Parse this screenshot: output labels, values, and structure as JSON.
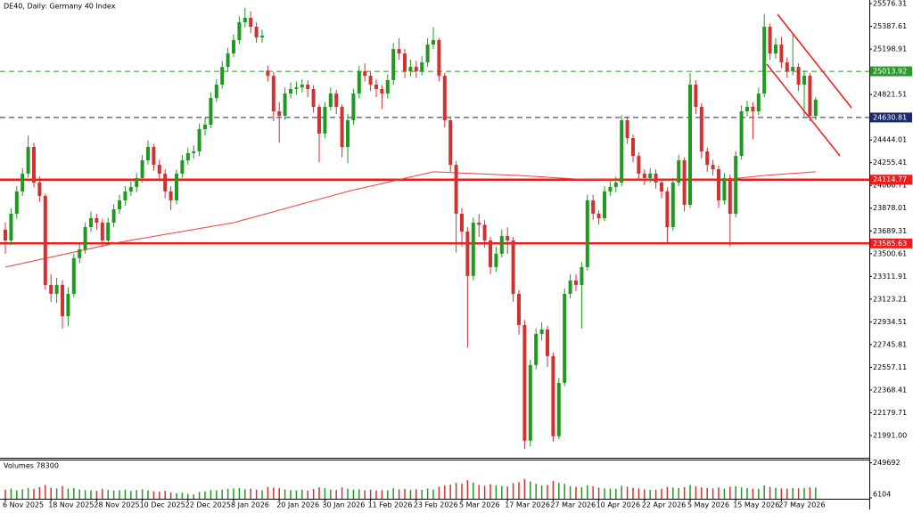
{
  "chart_data": {
    "type": "candlestick",
    "title": "DE40, Daily:  Germany 40 Index",
    "up_color": "#1f9a1f",
    "down_color": "#d23131",
    "categories": [
      "6 Nov 2025",
      null,
      null,
      null,
      null,
      null,
      null,
      null,
      "18 Nov 2025",
      null,
      null,
      null,
      null,
      null,
      null,
      null,
      "28 Nov 2025",
      null,
      null,
      null,
      null,
      null,
      null,
      null,
      "10 Dec 2025",
      null,
      null,
      null,
      null,
      null,
      null,
      null,
      "22 Dec 2025",
      null,
      null,
      null,
      null,
      null,
      null,
      null,
      "8 Jan 2026",
      null,
      null,
      null,
      null,
      null,
      null,
      null,
      "20 Jan 2026",
      null,
      null,
      null,
      null,
      null,
      null,
      null,
      "30 Jan 2026",
      null,
      null,
      null,
      null,
      null,
      null,
      null,
      "11 Feb 2026",
      null,
      null,
      null,
      null,
      null,
      null,
      null,
      "23 Feb 2026",
      null,
      null,
      null,
      null,
      null,
      null,
      null,
      "5 Mar 2026",
      null,
      null,
      null,
      null,
      null,
      null,
      null,
      "17 Mar 2026",
      null,
      null,
      null,
      null,
      null,
      null,
      null,
      "27 Mar 2026",
      null,
      null,
      null,
      null,
      null,
      null,
      null,
      "10 Apr 2026",
      null,
      null,
      null,
      null,
      null,
      null,
      null,
      "22 Apr 2026",
      null,
      null,
      null,
      null,
      null,
      null,
      null,
      "5 May 2026",
      null,
      null,
      null,
      null,
      null,
      null,
      null,
      "15 May 2026",
      null,
      null,
      null,
      null,
      null,
      null,
      null,
      "27 May 2026",
      null,
      null,
      null,
      null,
      null,
      null
    ],
    "open": [
      23700,
      23610,
      23832,
      24017,
      24165,
      24386,
      24091,
      23980,
      23241,
      23167,
      23241,
      22982,
      23167,
      23463,
      23536,
      23721,
      23795,
      23758,
      23610,
      23758,
      23869,
      23943,
      24017,
      24054,
      24128,
      24275,
      24386,
      24238,
      24165,
      24017,
      23943,
      24165,
      24275,
      24335,
      24349,
      24534,
      24571,
      24793,
      24904,
      25051,
      25162,
      25273,
      25421,
      25458,
      25384,
      25295,
      25020,
      24977,
      24682,
      24645,
      24830,
      24867,
      24880,
      24904,
      24867,
      24719,
      24497,
      24719,
      24830,
      24719,
      24386,
      24608,
      24830,
      25014,
      24977,
      24904,
      24867,
      24830,
      24941,
      25199,
      25162,
      25014,
      25051,
      25014,
      25088,
      25236,
      25273,
      24977,
      24608,
      24238,
      23832,
      23684,
      23315,
      23758,
      23740,
      23610,
      23389,
      23500,
      23647,
      23610,
      23167,
      22908,
      21948,
      22576,
      22834,
      22871,
      22650,
      21985,
      22428,
      23167,
      23278,
      23241,
      23389,
      23943,
      23832,
      23795,
      24017,
      24054,
      24091,
      24608,
      24460,
      24312,
      24165,
      24128,
      24165,
      24091,
      24017,
      23721,
      24091,
      24275,
      23906,
      24904,
      24719,
      24349,
      24238,
      24201,
      23943,
      24128,
      23832,
      24312,
      24682,
      24719,
      24682,
      24830,
      25384,
      25162,
      25236,
      25088,
      25014,
      25051,
      24904,
      24977,
      24645
    ],
    "high": [
      23760,
      23880,
      24060,
      24210,
      24480,
      24420,
      24140,
      24000,
      23330,
      23300,
      23280,
      23220,
      23500,
      23590,
      23760,
      23850,
      23830,
      23790,
      23800,
      23910,
      23990,
      24060,
      24100,
      24170,
      24320,
      24440,
      24410,
      24280,
      24200,
      24060,
      24200,
      24320,
      24380,
      24400,
      24580,
      24630,
      24840,
      24950,
      25100,
      25210,
      25320,
      25470,
      25540,
      25510,
      25420,
      25360,
      25060,
      25010,
      24760,
      24880,
      24920,
      24930,
      24950,
      24940,
      24900,
      24740,
      24760,
      24880,
      24860,
      24740,
      24660,
      24870,
      25060,
      25080,
      25010,
      24950,
      24900,
      24990,
      25250,
      25290,
      25200,
      25110,
      25100,
      25140,
      25290,
      25380,
      25290,
      25000,
      24640,
      24270,
      23880,
      23720,
      23800,
      23830,
      23780,
      23640,
      23560,
      23700,
      23720,
      23640,
      23200,
      22950,
      22620,
      22880,
      22930,
      22900,
      22680,
      22470,
      23210,
      23330,
      23330,
      23430,
      23990,
      23990,
      23860,
      24060,
      24100,
      24140,
      24650,
      24640,
      24490,
      24340,
      24200,
      24210,
      24200,
      24120,
      24050,
      24130,
      24320,
      24300,
      25000,
      24940,
      24750,
      24380,
      24280,
      24230,
      24170,
      24160,
      24350,
      24730,
      24770,
      24760,
      24880,
      25490,
      25410,
      25290,
      25300,
      25130,
      25330,
      25080,
      25020,
      25000,
      24800
    ],
    "low": [
      23500,
      23570,
      23790,
      23980,
      24130,
      24050,
      23930,
      23200,
      23100,
      23090,
      22880,
      22900,
      23140,
      23420,
      23500,
      23680,
      23700,
      23560,
      23580,
      23720,
      23830,
      23900,
      23980,
      24010,
      24090,
      24240,
      24190,
      24110,
      23960,
      23860,
      23910,
      24130,
      24240,
      24290,
      24310,
      24480,
      24540,
      24760,
      24870,
      25010,
      25130,
      25240,
      25380,
      25330,
      25250,
      25250,
      24930,
      24600,
      24420,
      24610,
      24790,
      24820,
      24840,
      24800,
      24670,
      24260,
      24460,
      24690,
      24660,
      24300,
      24250,
      24570,
      24790,
      24930,
      24850,
      24800,
      24700,
      24790,
      24900,
      25110,
      24960,
      24970,
      24960,
      24980,
      25050,
      25200,
      24930,
      24550,
      24180,
      23510,
      23560,
      22720,
      23280,
      23640,
      23550,
      23330,
      23350,
      23470,
      23500,
      23100,
      22830,
      21880,
      21900,
      22540,
      22780,
      22560,
      21940,
      21960,
      22400,
      23130,
      23190,
      22880,
      23360,
      23780,
      23740,
      23770,
      23980,
      24010,
      24060,
      24410,
      24260,
      24110,
      24070,
      24090,
      24040,
      23960,
      23590,
      23690,
      24060,
      23850,
      23880,
      24660,
      24290,
      24180,
      24150,
      23880,
      23910,
      23560,
      23800,
      24280,
      24640,
      24450,
      24650,
      24800,
      25110,
      25120,
      25040,
      24960,
      24980,
      24850,
      24640,
      24600,
      24610
    ],
    "close": [
      23610,
      23832,
      24017,
      24165,
      24386,
      24091,
      23980,
      23241,
      23167,
      23241,
      22982,
      23167,
      23463,
      23536,
      23721,
      23795,
      23758,
      23610,
      23758,
      23869,
      23943,
      24017,
      24054,
      24128,
      24275,
      24386,
      24238,
      24165,
      24017,
      23943,
      24165,
      24275,
      24335,
      24349,
      24534,
      24571,
      24793,
      24904,
      25051,
      25162,
      25273,
      25421,
      25458,
      25384,
      25295,
      25310,
      24977,
      24682,
      24645,
      24830,
      24867,
      24880,
      24904,
      24867,
      24719,
      24497,
      24719,
      24830,
      24719,
      24386,
      24608,
      24830,
      25014,
      24977,
      24904,
      24867,
      24830,
      24941,
      25199,
      25162,
      25014,
      25051,
      25014,
      25088,
      25236,
      25273,
      24977,
      24608,
      24238,
      23832,
      23684,
      23315,
      23758,
      23740,
      23610,
      23389,
      23500,
      23647,
      23610,
      23167,
      22908,
      21948,
      22576,
      22834,
      22871,
      22650,
      21985,
      22428,
      23167,
      23278,
      23241,
      23389,
      23943,
      23832,
      23795,
      24017,
      24054,
      24091,
      24608,
      24460,
      24312,
      24165,
      24128,
      24165,
      24091,
      24017,
      23721,
      24091,
      24275,
      23906,
      24904,
      24719,
      24349,
      24238,
      24201,
      23943,
      24128,
      23832,
      24312,
      24682,
      24719,
      24682,
      24830,
      25384,
      25162,
      25236,
      25088,
      25014,
      25051,
      24904,
      24977,
      24645,
      24778
    ],
    "volume": [
      62000,
      71000,
      58000,
      66000,
      74000,
      69000,
      81000,
      95000,
      77000,
      72000,
      88000,
      70000,
      76000,
      64000,
      60000,
      58000,
      55000,
      68000,
      61000,
      57000,
      59000,
      63000,
      54000,
      61000,
      66000,
      58000,
      52000,
      49000,
      56000,
      45000,
      38000,
      42000,
      35000,
      30000,
      47000,
      52000,
      61000,
      58000,
      64000,
      69000,
      72000,
      75000,
      66000,
      70000,
      63000,
      59000,
      82000,
      77000,
      73000,
      65000,
      60000,
      58000,
      62000,
      57000,
      68000,
      80000,
      74000,
      63000,
      61000,
      79000,
      70000,
      64000,
      66000,
      59000,
      62000,
      57000,
      60000,
      58000,
      73000,
      65000,
      68000,
      61000,
      66000,
      62000,
      70000,
      64000,
      84000,
      92000,
      98000,
      110000,
      105000,
      130000,
      112000,
      96000,
      90000,
      101000,
      94000,
      88000,
      85000,
      108000,
      115000,
      138000,
      120000,
      104000,
      92000,
      96000,
      124000,
      110000,
      106000,
      88000,
      82000,
      80000,
      94000,
      86000,
      78000,
      72000,
      70000,
      68000,
      90000,
      84000,
      76000,
      72000,
      66000,
      62000,
      64000,
      70000,
      82000,
      78000,
      74000,
      80000,
      96000,
      86000,
      80000,
      74000,
      72000,
      78000,
      70000,
      84000,
      88000,
      80000,
      74000,
      70000,
      68000,
      92000,
      82000,
      76000,
      72000,
      70000,
      74000,
      72000,
      76000,
      80000,
      78300
    ],
    "volume_title": "Volumes 78300",
    "volume_ylim": [
      0,
      260000
    ],
    "volume_yticks": [
      249692,
      6104
    ],
    "ma": {
      "color": "#e8433a",
      "x": [
        0,
        20,
        40,
        60,
        75,
        90,
        100,
        110,
        125,
        133,
        142
      ],
      "values": [
        23389,
        23595,
        23758,
        24017,
        24180,
        24150,
        24120,
        24110,
        24110,
        24150,
        24180
      ]
    },
    "ylim": [
      21821,
      25606
    ],
    "yticks": [
      25576.31,
      25387.61,
      25198.91,
      24821.51,
      24444.01,
      24255.41,
      24066.71,
      23878.01,
      23689.31,
      23500.61,
      23311.91,
      23123.21,
      22934.51,
      22745.81,
      22557.11,
      22368.41,
      22179.71,
      {
        "value": 21991,
        "label": "21991.00"
      }
    ],
    "levels": [
      {
        "value": 25013.92,
        "color": "#2e9a2e",
        "style": "dashed"
      },
      {
        "value": 24630.81,
        "color": "#1c2a6b",
        "style": "dashed"
      },
      {
        "value": 24114.77,
        "color": "#ee1c1c",
        "style": "solid"
      },
      {
        "value": 23585.63,
        "color": "#ee1c1c",
        "style": "solid"
      }
    ]
  }
}
